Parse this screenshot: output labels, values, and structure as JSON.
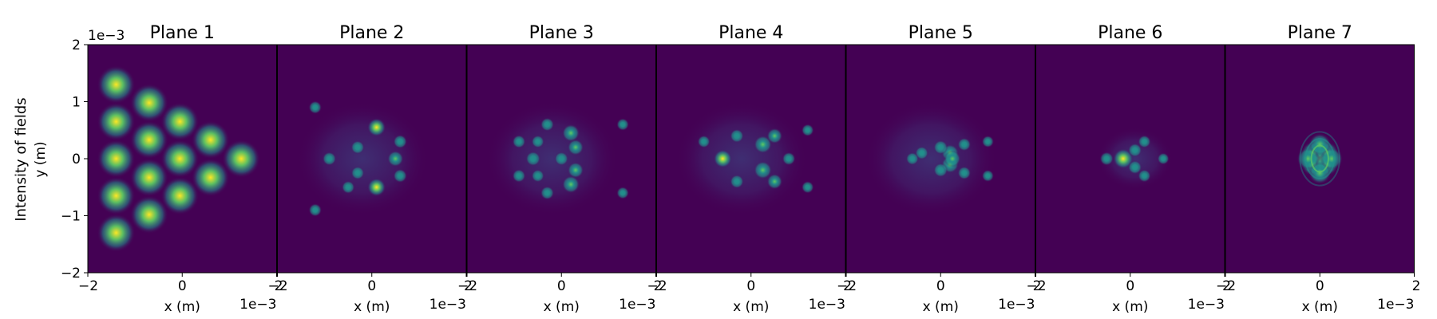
{
  "chart_data": {
    "type": "heatmap",
    "figure_ylabel": "Intensity of fields",
    "shared_ylabel": "y (m)",
    "shared_xlabel": "x (m)",
    "axis_exponent": "1e−3",
    "xlim": [
      -0.002,
      0.002
    ],
    "ylim": [
      -0.002,
      0.002
    ],
    "x_ticks": [
      -2,
      0,
      2
    ],
    "x_tick_labels": [
      "−2",
      "0",
      "2"
    ],
    "y_ticks": [
      -2,
      -1,
      0,
      1,
      2
    ],
    "y_tick_labels": [
      "−2",
      "−1",
      "0",
      "1",
      "2"
    ],
    "colormap": "viridis",
    "colors": {
      "background": "#440154",
      "low": "#3b528b",
      "mid": "#21918c",
      "high": "#5ec962",
      "peak": "#fde725"
    },
    "panels": [
      {
        "title": "Plane 1",
        "description": "triangular array of 15 Gaussian spots",
        "spots": [
          [
            -1.4,
            1.3,
            1.0
          ],
          [
            -1.4,
            0.65,
            1.0
          ],
          [
            -1.4,
            0.0,
            1.0
          ],
          [
            -1.4,
            -0.65,
            1.0
          ],
          [
            -1.4,
            -1.3,
            1.0
          ],
          [
            -0.7,
            0.98,
            1.0
          ],
          [
            -0.7,
            0.33,
            1.0
          ],
          [
            -0.7,
            -0.33,
            1.0
          ],
          [
            -0.7,
            -0.98,
            1.0
          ],
          [
            -0.05,
            0.65,
            1.0
          ],
          [
            -0.05,
            0.0,
            1.0
          ],
          [
            -0.05,
            -0.65,
            1.0
          ],
          [
            0.6,
            0.33,
            1.0
          ],
          [
            0.6,
            -0.33,
            1.0
          ],
          [
            1.25,
            0.0,
            1.0
          ]
        ]
      },
      {
        "title": "Plane 2",
        "spots": [
          [
            0.1,
            0.55,
            0.8
          ],
          [
            0.1,
            -0.5,
            0.8
          ],
          [
            0.5,
            0.0,
            0.55
          ],
          [
            -0.9,
            0.0,
            0.3
          ],
          [
            -0.3,
            0.2,
            0.28
          ],
          [
            -1.2,
            0.9,
            0.22
          ],
          [
            -1.2,
            -0.9,
            0.22
          ],
          [
            -0.5,
            -0.5,
            0.22
          ],
          [
            0.6,
            0.3,
            0.3
          ],
          [
            0.6,
            -0.3,
            0.3
          ],
          [
            -0.3,
            -0.25,
            0.25
          ]
        ]
      },
      {
        "title": "Plane 3",
        "spots": [
          [
            0.2,
            0.45,
            0.7
          ],
          [
            0.3,
            0.2,
            0.55
          ],
          [
            0.3,
            -0.2,
            0.55
          ],
          [
            0.2,
            -0.45,
            0.7
          ],
          [
            -0.6,
            0.0,
            0.4
          ],
          [
            -0.9,
            0.3,
            0.25
          ],
          [
            -0.9,
            -0.3,
            0.25
          ],
          [
            -0.3,
            0.6,
            0.28
          ],
          [
            -0.3,
            -0.6,
            0.28
          ],
          [
            0.0,
            0.0,
            0.3
          ],
          [
            -0.5,
            0.3,
            0.2
          ],
          [
            -0.5,
            -0.3,
            0.2
          ],
          [
            1.3,
            0.6,
            0.15
          ],
          [
            1.3,
            -0.6,
            0.15
          ]
        ]
      },
      {
        "title": "Plane 4",
        "spots": [
          [
            -0.6,
            0.0,
            0.8
          ],
          [
            0.25,
            0.25,
            0.75
          ],
          [
            0.25,
            -0.2,
            0.75
          ],
          [
            0.5,
            0.4,
            0.5
          ],
          [
            0.5,
            -0.4,
            0.5
          ],
          [
            -0.3,
            0.4,
            0.3
          ],
          [
            -0.3,
            -0.4,
            0.3
          ],
          [
            0.8,
            0.0,
            0.25
          ],
          [
            -1.0,
            0.3,
            0.18
          ],
          [
            1.2,
            0.5,
            0.15
          ],
          [
            1.2,
            -0.5,
            0.15
          ]
        ]
      },
      {
        "title": "Plane 5",
        "spots": [
          [
            0.2,
            0.1,
            0.7
          ],
          [
            0.2,
            -0.1,
            0.7
          ],
          [
            0.25,
            0.0,
            0.6
          ],
          [
            0.0,
            0.2,
            0.35
          ],
          [
            0.0,
            -0.2,
            0.35
          ],
          [
            -0.4,
            0.1,
            0.25
          ],
          [
            -0.6,
            0.0,
            0.2
          ],
          [
            0.5,
            0.25,
            0.25
          ],
          [
            0.5,
            -0.25,
            0.25
          ],
          [
            1.0,
            0.3,
            0.12
          ],
          [
            1.0,
            -0.3,
            0.12
          ]
        ]
      },
      {
        "title": "Plane 6",
        "spots": [
          [
            -0.15,
            0.0,
            1.0
          ],
          [
            0.1,
            0.15,
            0.3
          ],
          [
            0.1,
            -0.15,
            0.3
          ],
          [
            -0.5,
            0.0,
            0.3
          ],
          [
            0.3,
            0.3,
            0.2
          ],
          [
            0.3,
            -0.3,
            0.2
          ],
          [
            0.7,
            0.0,
            0.1
          ]
        ]
      },
      {
        "title": "Plane 7",
        "spots": [
          [
            0.0,
            0.0,
            0.9
          ],
          [
            -0.15,
            0.1,
            0.55
          ],
          [
            0.15,
            0.1,
            0.55
          ],
          [
            -0.15,
            -0.1,
            0.55
          ],
          [
            0.15,
            -0.1,
            0.55
          ],
          [
            0.0,
            0.25,
            0.5
          ],
          [
            0.0,
            -0.25,
            0.5
          ],
          [
            -0.25,
            0.0,
            0.5
          ],
          [
            0.25,
            0.0,
            0.5
          ]
        ]
      }
    ]
  }
}
